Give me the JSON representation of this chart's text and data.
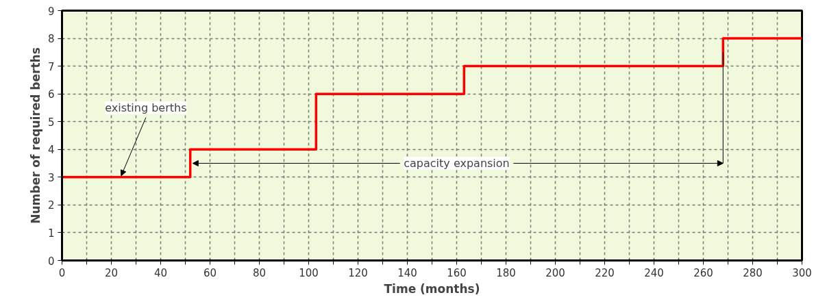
{
  "chart_data": {
    "type": "step",
    "xlabel": "Time (months)",
    "ylabel": "Number of required berths",
    "x": [
      0,
      52,
      103,
      163,
      268,
      300
    ],
    "series": [
      {
        "color": "#ff0000",
        "values": [
          3,
          4,
          6,
          7,
          8,
          8
        ]
      }
    ],
    "xlim": [
      0,
      300
    ],
    "ylim": [
      0,
      9
    ],
    "xticks": [
      0,
      {
        "value": 10,
        "label": null
      },
      20,
      {
        "value": 30,
        "label": null
      },
      40,
      {
        "value": 50,
        "label": null
      },
      60,
      {
        "value": 70,
        "label": null
      },
      80,
      {
        "value": 90,
        "label": null
      },
      100,
      {
        "value": 110,
        "label": null
      },
      120,
      {
        "value": 130,
        "label": null
      },
      140,
      {
        "value": 150,
        "label": null
      },
      160,
      {
        "value": 170,
        "label": null
      },
      180,
      {
        "value": 190,
        "label": null
      },
      200,
      {
        "value": 210,
        "label": null
      },
      220,
      {
        "value": 230,
        "label": null
      },
      240,
      {
        "value": 250,
        "label": null
      },
      260,
      {
        "value": 270,
        "label": null
      },
      280,
      {
        "value": 290,
        "label": null
      },
      300
    ],
    "yticks": [
      0,
      1,
      2,
      3,
      4,
      5,
      6,
      7,
      8,
      9
    ],
    "grid": true,
    "marker": "none",
    "line_style": "solid",
    "annotations": [
      {
        "text": "existing berths",
        "x": 24,
        "y": 3
      },
      {
        "text": "capacity expansion",
        "x": 52,
        "y": 3.5
      }
    ]
  }
}
